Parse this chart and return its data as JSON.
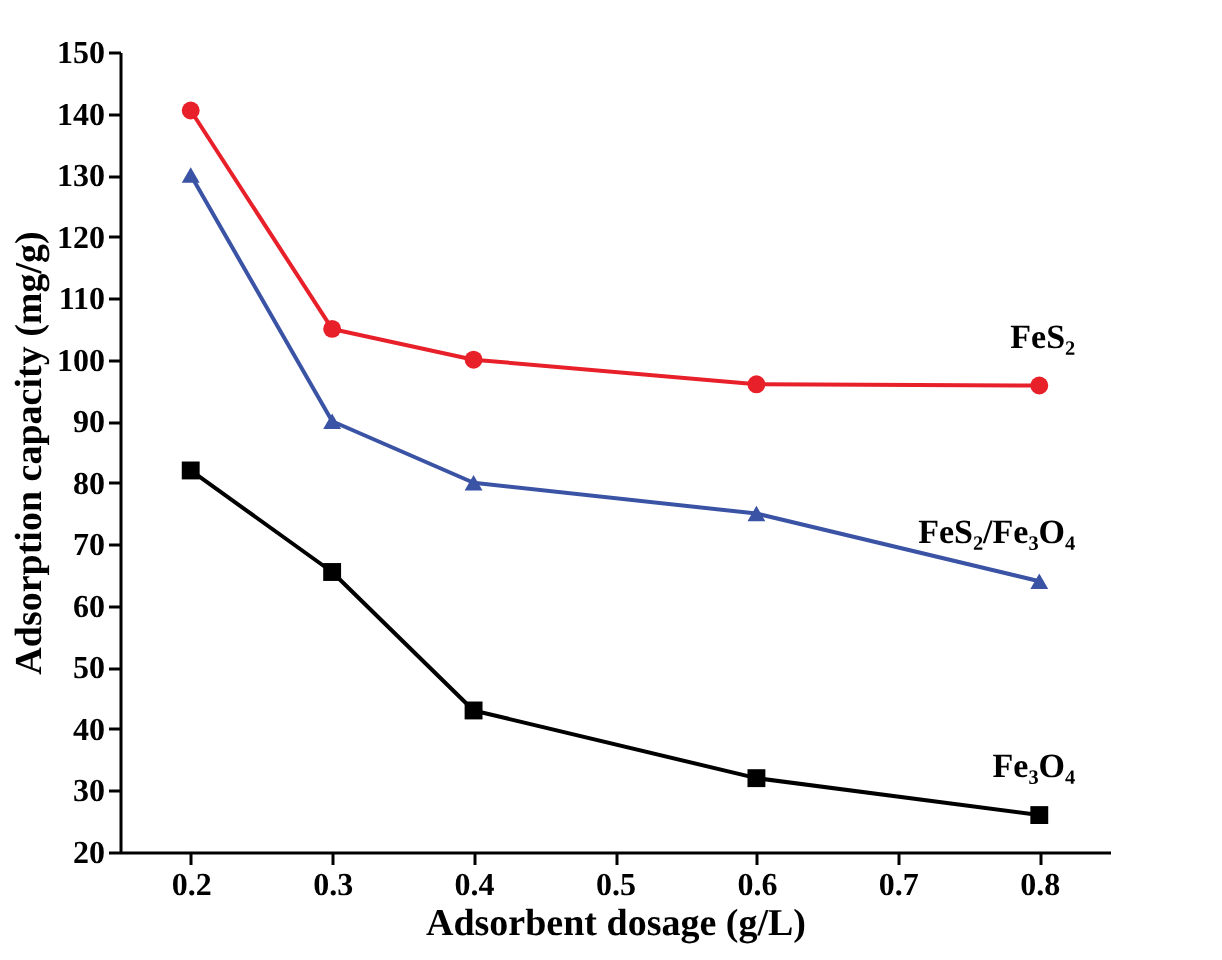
{
  "chart_data": {
    "type": "line",
    "xlabel": "Adsorbent dosage (g/L)",
    "ylabel": "Adsorption capacity (mg/g)",
    "x": [
      0.2,
      0.3,
      0.4,
      0.6,
      0.8
    ],
    "series": [
      {
        "name": "FeS₂",
        "color": "#e8202a",
        "marker": "circle",
        "values": [
          140.5,
          105,
          100,
          96,
          95.8
        ]
      },
      {
        "name": "FeS₂/Fe₃O₄",
        "color": "#3a53a4",
        "marker": "triangle",
        "values": [
          130,
          90,
          80,
          75,
          64
        ]
      },
      {
        "name": "Fe₃O₄",
        "color": "#000000",
        "marker": "square",
        "values": [
          82,
          65.5,
          43,
          32,
          26
        ]
      }
    ],
    "xlim": [
      0.15,
      0.85
    ],
    "xticks": [
      0.2,
      0.3,
      0.4,
      0.5,
      0.6,
      0.7,
      0.8
    ],
    "ylim": [
      20,
      150
    ],
    "yticks": [
      20,
      30,
      40,
      50,
      60,
      70,
      80,
      90,
      100,
      110,
      120,
      130,
      140,
      150
    ],
    "grid": false
  }
}
